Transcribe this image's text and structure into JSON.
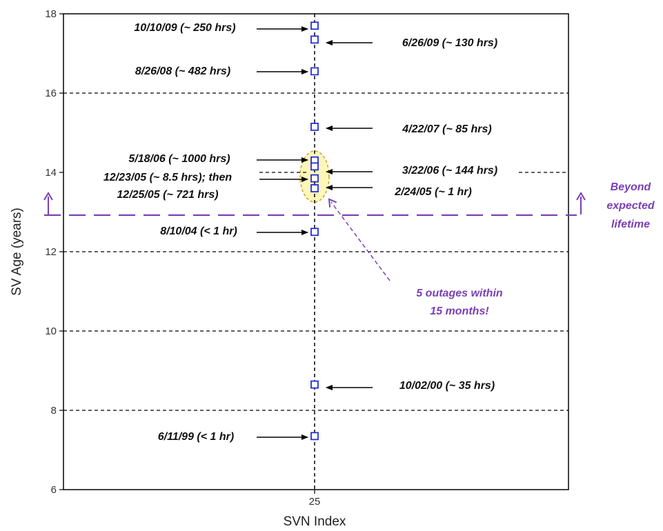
{
  "colors": {
    "marker": "#1f2fd6",
    "purple": "#7a3fb5",
    "highlight_fill": "#fdf7b8",
    "grid": "#000000"
  },
  "chart_data": {
    "type": "scatter",
    "title": "",
    "xlabel": "SVN Index",
    "ylabel": "SV Age (years)",
    "x_ticks": [
      "25"
    ],
    "y_ticks": [
      6,
      8,
      10,
      12,
      14,
      16,
      18
    ],
    "ylim": [
      6,
      18
    ],
    "grid": "dashed horizontal lines at y = 8, 10, 12, 16; dashed vertical line at x = 25",
    "series": [
      {
        "x": 25,
        "y": [
          17.7,
          17.35,
          16.55,
          15.15,
          14.3,
          14.15,
          13.85,
          13.6,
          12.5,
          8.65,
          7.35
        ]
      }
    ],
    "annotations": [
      {
        "text": "10/10/09 (~ 250 hrs)",
        "y": 17.7
      },
      {
        "text": "6/26/09 (~ 130 hrs)",
        "y": 17.35
      },
      {
        "text": "8/26/08 (~ 482 hrs)",
        "y": 16.55
      },
      {
        "text": "4/22/07 (~ 85 hrs)",
        "y": 15.15
      },
      {
        "text": "5/18/06 (~ 1000 hrs)",
        "y": 14.3
      },
      {
        "text": "3/22/06 (~ 144 hrs)",
        "y": 14.15
      },
      {
        "text": "12/23/05 (~ 8.5 hrs); then",
        "y": 13.85
      },
      {
        "text": "12/25/05 (~ 721 hrs)",
        "y": 13.85
      },
      {
        "text": "2/24/05 (~ 1 hr)",
        "y": 13.6
      },
      {
        "text": "8/10/04 (< 1 hr)",
        "y": 12.5
      },
      {
        "text": "10/02/00 (~ 35 hrs)",
        "y": 8.65
      },
      {
        "text": "6/11/99 (< 1 hr)",
        "y": 7.35
      }
    ],
    "expected_lifetime_y": 12.95,
    "expected_lifetime_label": [
      "Beyond",
      "expected",
      "lifetime"
    ],
    "callout": [
      "5 outages within",
      "15 months!"
    ]
  }
}
